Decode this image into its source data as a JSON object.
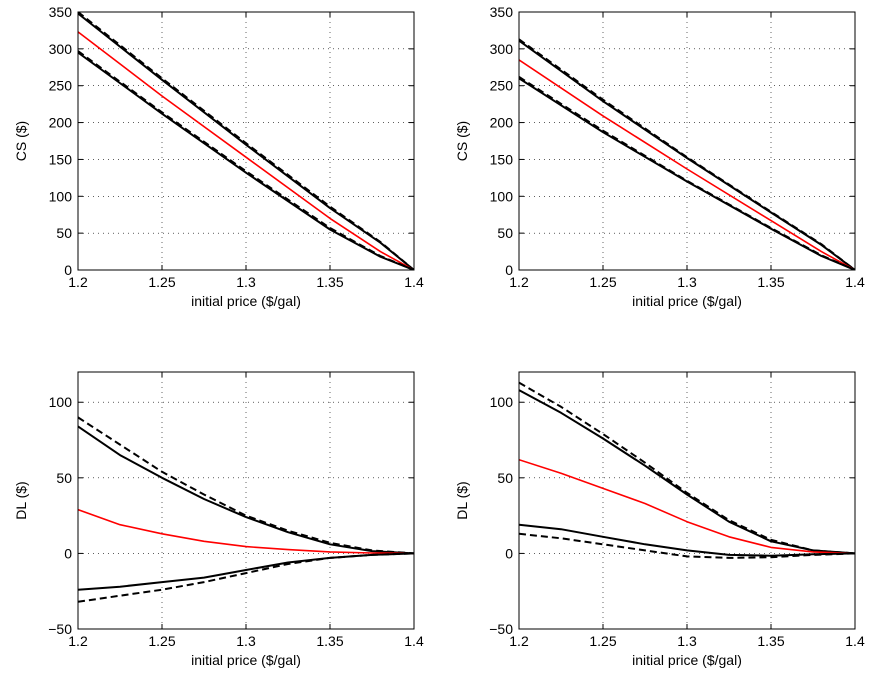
{
  "figure": {
    "background": "#ffffff",
    "line_colors": {
      "bounds": "#000000",
      "mean": "#ff0000"
    }
  },
  "chart_data": [
    {
      "type": "line",
      "panel": "top-left",
      "xlabel": "initial price ($/gal)",
      "ylabel": "CS ($)",
      "xlim": [
        1.2,
        1.4
      ],
      "ylim": [
        0,
        350
      ],
      "xticks": [
        "1.2",
        "1.25",
        "1.3",
        "1.35",
        "1.4"
      ],
      "yticks": [
        "0",
        "50",
        "100",
        "150",
        "200",
        "250",
        "300",
        "350"
      ],
      "grid": true,
      "series": [
        {
          "style": "solid",
          "color": "#000000",
          "x": [
            1.2,
            1.25,
            1.3,
            1.35,
            1.38,
            1.4
          ],
          "y": [
            348,
            258,
            170,
            84,
            37,
            0
          ]
        },
        {
          "style": "dashed",
          "color": "#000000",
          "x": [
            1.2,
            1.25,
            1.3,
            1.35,
            1.38,
            1.4
          ],
          "y": [
            350,
            260,
            172,
            86,
            38,
            0
          ]
        },
        {
          "style": "solid",
          "color": "#ff0000",
          "x": [
            1.2,
            1.25,
            1.3,
            1.35,
            1.38,
            1.4
          ],
          "y": [
            323,
            236,
            153,
            70,
            25,
            0
          ]
        },
        {
          "style": "solid",
          "color": "#000000",
          "x": [
            1.2,
            1.25,
            1.3,
            1.35,
            1.38,
            1.4
          ],
          "y": [
            295,
            212,
            132,
            55,
            18,
            0
          ]
        },
        {
          "style": "dashed",
          "color": "#000000",
          "x": [
            1.2,
            1.25,
            1.3,
            1.35,
            1.38,
            1.4
          ],
          "y": [
            297,
            214,
            134,
            57,
            19,
            0
          ]
        }
      ]
    },
    {
      "type": "line",
      "panel": "top-right",
      "xlabel": "initial price ($/gal)",
      "ylabel": "CS ($)",
      "xlim": [
        1.2,
        1.4
      ],
      "ylim": [
        0,
        350
      ],
      "xticks": [
        "1.2",
        "1.25",
        "1.3",
        "1.35",
        "1.4"
      ],
      "yticks": [
        "0",
        "50",
        "100",
        "150",
        "200",
        "250",
        "300",
        "350"
      ],
      "grid": true,
      "series": [
        {
          "style": "solid",
          "color": "#000000",
          "x": [
            1.2,
            1.25,
            1.3,
            1.35,
            1.38,
            1.4
          ],
          "y": [
            311,
            229,
            152,
            78,
            34,
            0
          ]
        },
        {
          "style": "dashed",
          "color": "#000000",
          "x": [
            1.2,
            1.25,
            1.3,
            1.35,
            1.38,
            1.4
          ],
          "y": [
            313,
            231,
            153,
            79,
            35,
            0
          ]
        },
        {
          "style": "solid",
          "color": "#ff0000",
          "x": [
            1.2,
            1.25,
            1.3,
            1.35,
            1.38,
            1.4
          ],
          "y": [
            285,
            209,
            137,
            67,
            25,
            0
          ]
        },
        {
          "style": "solid",
          "color": "#000000",
          "x": [
            1.2,
            1.25,
            1.3,
            1.35,
            1.38,
            1.4
          ],
          "y": [
            260,
            187,
            120,
            56,
            19,
            0
          ]
        },
        {
          "style": "dashed",
          "color": "#000000",
          "x": [
            1.2,
            1.25,
            1.3,
            1.35,
            1.38,
            1.4
          ],
          "y": [
            262,
            189,
            121,
            57,
            20,
            0
          ]
        }
      ]
    },
    {
      "type": "line",
      "panel": "bottom-left",
      "xlabel": "initial price ($/gal)",
      "ylabel": "DL ($)",
      "xlim": [
        1.2,
        1.4
      ],
      "ylim": [
        -50,
        120
      ],
      "xticks": [
        "1.2",
        "1.25",
        "1.3",
        "1.35",
        "1.4"
      ],
      "yticks": [
        "−50",
        "0",
        "50",
        "100"
      ],
      "grid": true,
      "series": [
        {
          "style": "dashed",
          "color": "#000000",
          "x": [
            1.2,
            1.225,
            1.25,
            1.275,
            1.3,
            1.325,
            1.35,
            1.375,
            1.4
          ],
          "y": [
            90,
            72,
            54,
            39,
            25,
            15,
            7,
            2,
            0
          ]
        },
        {
          "style": "solid",
          "color": "#000000",
          "x": [
            1.2,
            1.225,
            1.25,
            1.275,
            1.3,
            1.325,
            1.35,
            1.375,
            1.4
          ],
          "y": [
            84,
            65,
            50,
            36,
            24,
            14,
            6,
            1.5,
            0
          ]
        },
        {
          "style": "solid",
          "color": "#ff0000",
          "x": [
            1.2,
            1.225,
            1.25,
            1.275,
            1.3,
            1.325,
            1.35,
            1.375,
            1.4
          ],
          "y": [
            29,
            19,
            13,
            8,
            4.5,
            2.5,
            1,
            0.3,
            0
          ]
        },
        {
          "style": "solid",
          "color": "#000000",
          "x": [
            1.2,
            1.225,
            1.25,
            1.275,
            1.3,
            1.325,
            1.35,
            1.375,
            1.4
          ],
          "y": [
            -24,
            -22,
            -19,
            -16,
            -11,
            -6,
            -3,
            -1,
            0
          ]
        },
        {
          "style": "dashed",
          "color": "#000000",
          "x": [
            1.2,
            1.225,
            1.25,
            1.275,
            1.3,
            1.325,
            1.35,
            1.375,
            1.4
          ],
          "y": [
            -32,
            -28,
            -24,
            -19,
            -13,
            -7,
            -3,
            -1,
            0
          ]
        }
      ]
    },
    {
      "type": "line",
      "panel": "bottom-right",
      "xlabel": "initial price ($/gal)",
      "ylabel": "DL ($)",
      "xlim": [
        1.2,
        1.4
      ],
      "ylim": [
        -50,
        120
      ],
      "xticks": [
        "1.2",
        "1.25",
        "1.3",
        "1.35",
        "1.4"
      ],
      "yticks": [
        "−50",
        "0",
        "50",
        "100"
      ],
      "grid": true,
      "series": [
        {
          "style": "dashed",
          "color": "#000000",
          "x": [
            1.2,
            1.225,
            1.25,
            1.275,
            1.3,
            1.325,
            1.35,
            1.375,
            1.4
          ],
          "y": [
            113,
            97,
            79,
            60,
            40,
            22,
            9,
            2,
            0
          ]
        },
        {
          "style": "solid",
          "color": "#000000",
          "x": [
            1.2,
            1.225,
            1.25,
            1.275,
            1.3,
            1.325,
            1.35,
            1.375,
            1.4
          ],
          "y": [
            108,
            93,
            76,
            58,
            39,
            21,
            8,
            2,
            0
          ]
        },
        {
          "style": "solid",
          "color": "#ff0000",
          "x": [
            1.2,
            1.225,
            1.25,
            1.275,
            1.3,
            1.325,
            1.35,
            1.375,
            1.4
          ],
          "y": [
            62,
            53,
            43,
            33,
            21,
            11,
            4,
            1,
            0
          ]
        },
        {
          "style": "solid",
          "color": "#000000",
          "x": [
            1.2,
            1.225,
            1.25,
            1.275,
            1.3,
            1.325,
            1.35,
            1.375,
            1.4
          ],
          "y": [
            19,
            16,
            11,
            6,
            2,
            -1,
            -1.5,
            -0.5,
            0
          ]
        },
        {
          "style": "dashed",
          "color": "#000000",
          "x": [
            1.2,
            1.225,
            1.25,
            1.275,
            1.3,
            1.325,
            1.35,
            1.375,
            1.4
          ],
          "y": [
            13,
            10,
            6,
            2,
            -2,
            -3,
            -2.5,
            -1,
            0
          ]
        }
      ]
    }
  ]
}
